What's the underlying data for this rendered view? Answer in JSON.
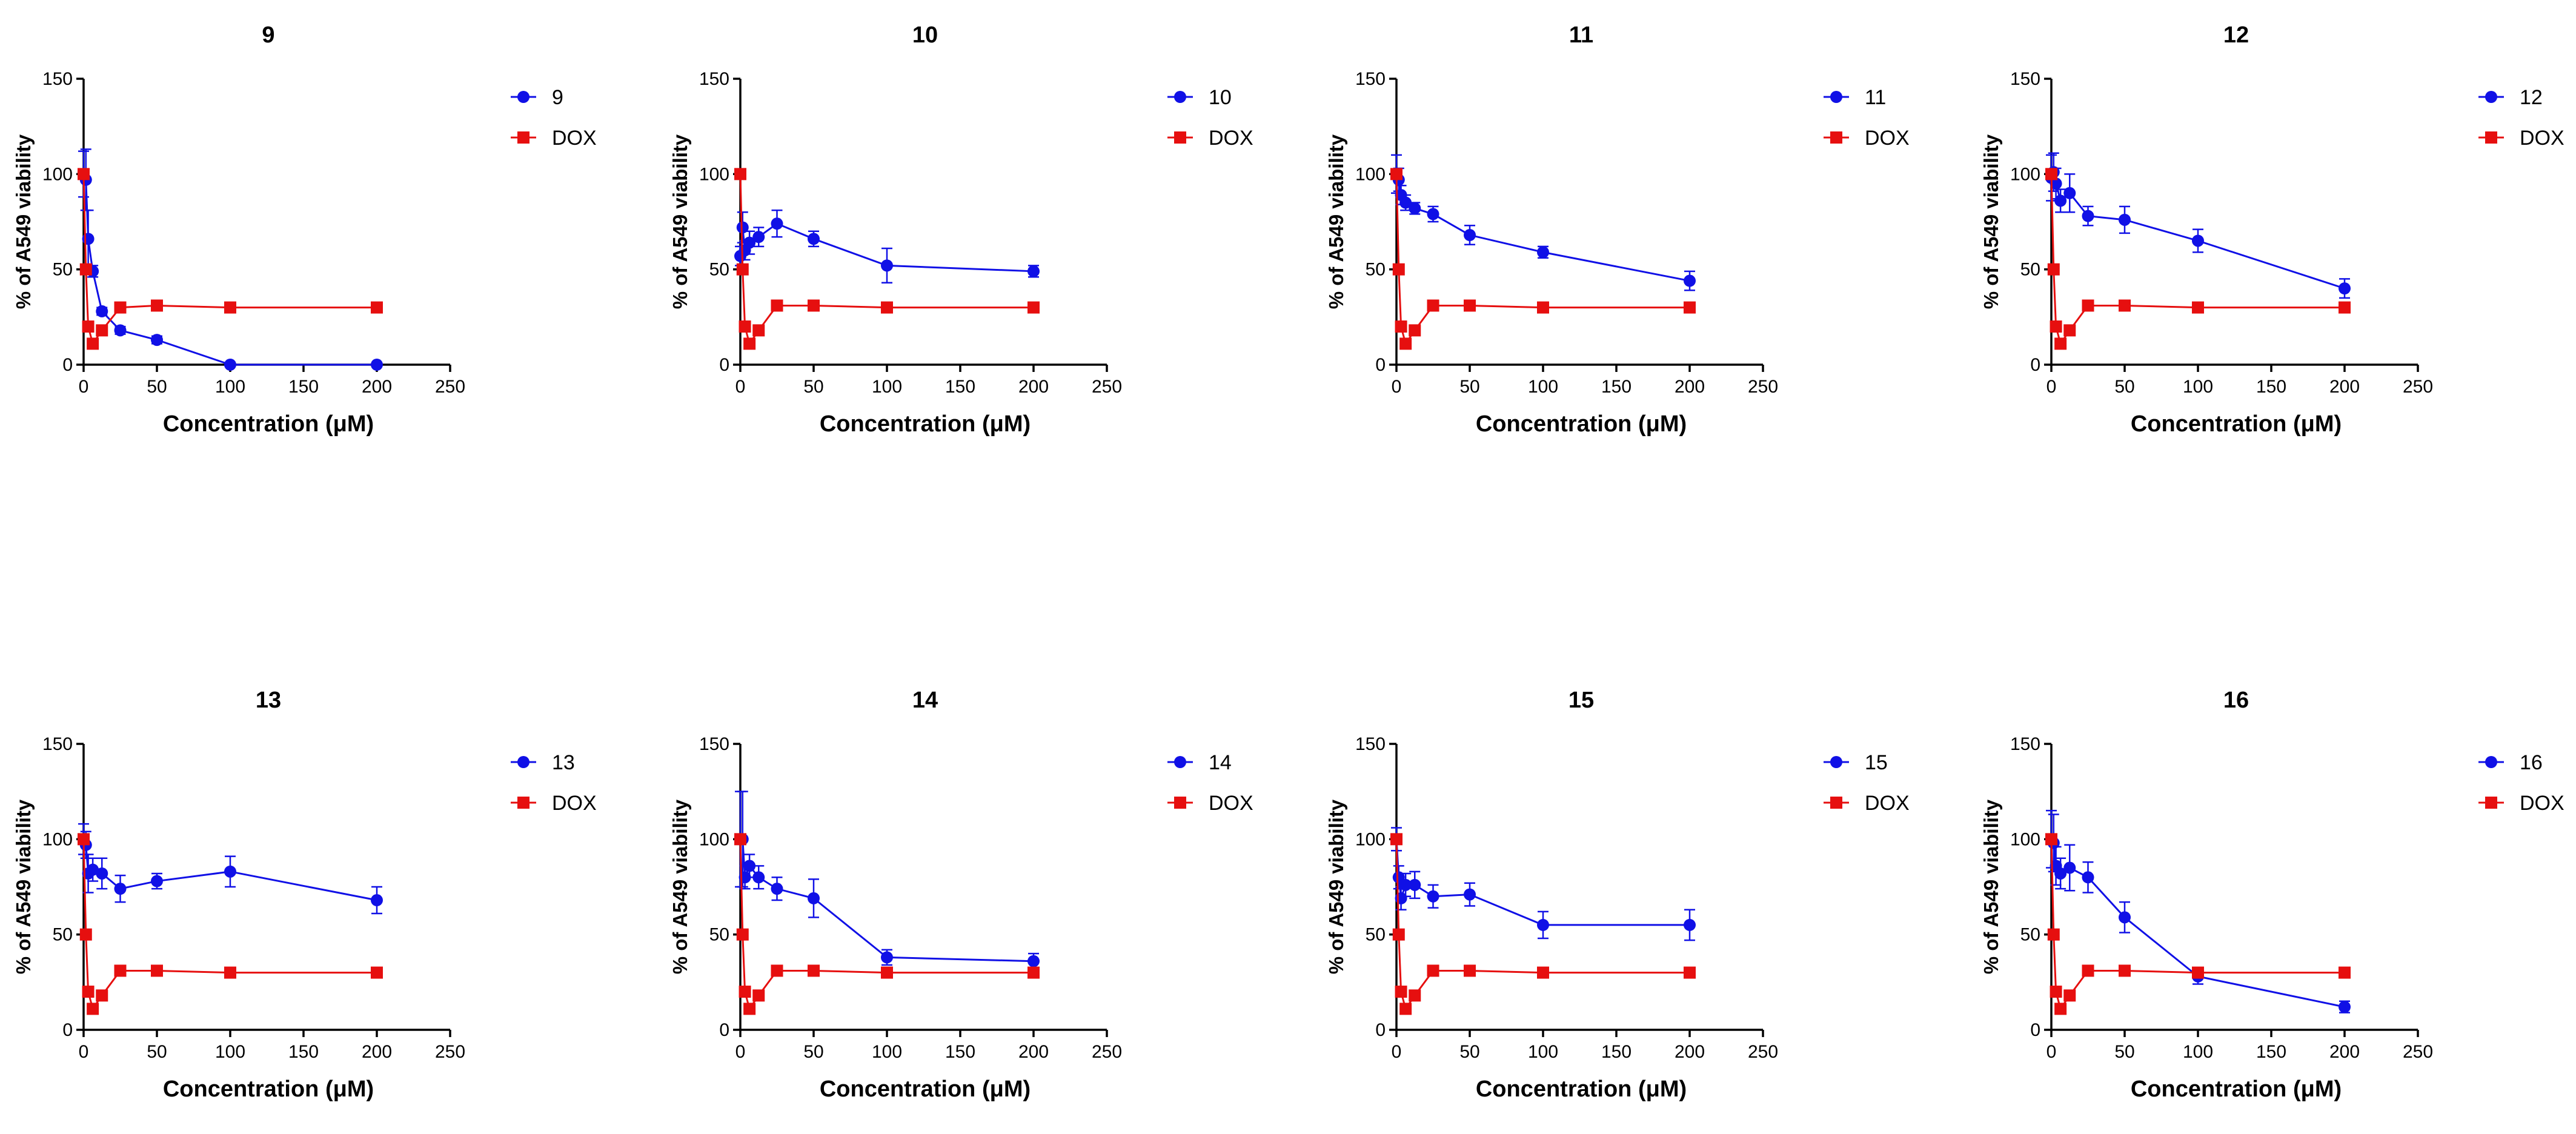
{
  "colors": {
    "compound": "#1010e6",
    "dox": "#e60f0f"
  },
  "chart_data": [
    {
      "type": "line",
      "title": "9",
      "xlabel": "Concentration (μM)",
      "ylabel": "% of A549 viability",
      "xlim": [
        0,
        250
      ],
      "ylim": [
        0,
        150
      ],
      "xticks": [
        0,
        50,
        100,
        150,
        200,
        250
      ],
      "yticks": [
        0,
        50,
        100,
        150
      ],
      "grid": false,
      "legend": "right",
      "series": [
        {
          "name": "9",
          "marker": "circle",
          "color": "#1010e6",
          "x": [
            0,
            1.56,
            3.13,
            6.25,
            12.5,
            25,
            50,
            100,
            200
          ],
          "y": [
            100,
            97,
            66,
            49,
            28,
            18,
            13,
            0,
            0
          ],
          "err": [
            12,
            16,
            15,
            3,
            2,
            2,
            2,
            1,
            1
          ]
        },
        {
          "name": "DOX",
          "marker": "square",
          "color": "#e60f0f",
          "x": [
            0,
            1.56,
            3.13,
            6.25,
            12.5,
            25,
            50,
            100,
            200
          ],
          "y": [
            100,
            50,
            20,
            11,
            18,
            30,
            31,
            30,
            30
          ],
          "err": [
            0,
            0,
            0,
            0,
            0,
            0,
            0,
            0,
            0
          ]
        }
      ]
    },
    {
      "type": "line",
      "title": "10",
      "xlabel": "Concentration (μM)",
      "ylabel": "% of A549 viability",
      "xlim": [
        0,
        250
      ],
      "ylim": [
        0,
        150
      ],
      "xticks": [
        0,
        50,
        100,
        150,
        200,
        250
      ],
      "yticks": [
        0,
        50,
        100,
        150
      ],
      "grid": false,
      "legend": "right",
      "series": [
        {
          "name": "10",
          "marker": "circle",
          "color": "#1010e6",
          "x": [
            0,
            1.56,
            3.13,
            6.25,
            12.5,
            25,
            50,
            100,
            200
          ],
          "y": [
            57,
            72,
            60,
            64,
            67,
            74,
            66,
            52,
            49
          ],
          "err": [
            5,
            8,
            5,
            6,
            5,
            7,
            4,
            9,
            3
          ]
        },
        {
          "name": "DOX",
          "marker": "square",
          "color": "#e60f0f",
          "x": [
            0,
            1.56,
            3.13,
            6.25,
            12.5,
            25,
            50,
            100,
            200
          ],
          "y": [
            100,
            50,
            20,
            11,
            18,
            31,
            31,
            30,
            30
          ],
          "err": [
            0,
            0,
            0,
            0,
            0,
            0,
            0,
            0,
            0
          ]
        }
      ]
    },
    {
      "type": "line",
      "title": "11",
      "xlabel": "Concentration (μM)",
      "ylabel": "% of A549 viability",
      "xlim": [
        0,
        250
      ],
      "ylim": [
        0,
        150
      ],
      "xticks": [
        0,
        50,
        100,
        150,
        200,
        250
      ],
      "yticks": [
        0,
        50,
        100,
        150
      ],
      "grid": false,
      "legend": "right",
      "series": [
        {
          "name": "11",
          "marker": "circle",
          "color": "#1010e6",
          "x": [
            0,
            1.56,
            3.13,
            6.25,
            12.5,
            25,
            50,
            100,
            200
          ],
          "y": [
            100,
            97,
            89,
            85,
            82,
            79,
            68,
            59,
            44
          ],
          "err": [
            10,
            6,
            5,
            4,
            3,
            4,
            5,
            3,
            5
          ]
        },
        {
          "name": "DOX",
          "marker": "square",
          "color": "#e60f0f",
          "x": [
            0,
            1.56,
            3.13,
            6.25,
            12.5,
            25,
            50,
            100,
            200
          ],
          "y": [
            100,
            50,
            20,
            11,
            18,
            31,
            31,
            30,
            30
          ],
          "err": [
            0,
            0,
            0,
            0,
            0,
            0,
            0,
            0,
            0
          ]
        }
      ]
    },
    {
      "type": "line",
      "title": "12",
      "xlabel": "Concentration (μM)",
      "ylabel": "% of A549 viability",
      "xlim": [
        0,
        250
      ],
      "ylim": [
        0,
        150
      ],
      "xticks": [
        0,
        50,
        100,
        150,
        200,
        250
      ],
      "yticks": [
        0,
        50,
        100,
        150
      ],
      "grid": false,
      "legend": "right",
      "series": [
        {
          "name": "12",
          "marker": "circle",
          "color": "#1010e6",
          "x": [
            0,
            1.56,
            3.13,
            6.25,
            12.5,
            25,
            50,
            100,
            200
          ],
          "y": [
            98,
            101,
            95,
            86,
            90,
            78,
            76,
            65,
            40
          ],
          "err": [
            12,
            10,
            8,
            6,
            10,
            5,
            7,
            6,
            5
          ]
        },
        {
          "name": "DOX",
          "marker": "square",
          "color": "#e60f0f",
          "x": [
            0,
            1.56,
            3.13,
            6.25,
            12.5,
            25,
            50,
            100,
            200
          ],
          "y": [
            100,
            50,
            20,
            11,
            18,
            31,
            31,
            30,
            30
          ],
          "err": [
            0,
            0,
            0,
            0,
            0,
            0,
            0,
            0,
            0
          ]
        }
      ]
    },
    {
      "type": "line",
      "title": "13",
      "xlabel": "Concentration (μM)",
      "ylabel": "% of A549 viability",
      "xlim": [
        0,
        250
      ],
      "ylim": [
        0,
        150
      ],
      "xticks": [
        0,
        50,
        100,
        150,
        200,
        250
      ],
      "yticks": [
        0,
        50,
        100,
        150
      ],
      "grid": false,
      "legend": "right",
      "series": [
        {
          "name": "13",
          "marker": "circle",
          "color": "#1010e6",
          "x": [
            0,
            1.56,
            3.13,
            6.25,
            12.5,
            25,
            50,
            100,
            200
          ],
          "y": [
            100,
            97,
            82,
            84,
            82,
            74,
            78,
            83,
            68
          ],
          "err": [
            8,
            7,
            10,
            6,
            8,
            7,
            4,
            8,
            7
          ]
        },
        {
          "name": "DOX",
          "marker": "square",
          "color": "#e60f0f",
          "x": [
            0,
            1.56,
            3.13,
            6.25,
            12.5,
            25,
            50,
            100,
            200
          ],
          "y": [
            100,
            50,
            20,
            11,
            18,
            31,
            31,
            30,
            30
          ],
          "err": [
            0,
            0,
            0,
            0,
            0,
            0,
            0,
            0,
            0
          ]
        }
      ]
    },
    {
      "type": "line",
      "title": "14",
      "xlabel": "Concentration (μM)",
      "ylabel": "% of A549 viability",
      "xlim": [
        0,
        250
      ],
      "ylim": [
        0,
        150
      ],
      "xticks": [
        0,
        50,
        100,
        150,
        200,
        250
      ],
      "yticks": [
        0,
        50,
        100,
        150
      ],
      "grid": false,
      "legend": "right",
      "series": [
        {
          "name": "14",
          "marker": "circle",
          "color": "#1010e6",
          "x": [
            0,
            1.56,
            3.13,
            6.25,
            12.5,
            25,
            50,
            100,
            200
          ],
          "y": [
            100,
            100,
            80,
            86,
            80,
            74,
            69,
            38,
            36
          ],
          "err": [
            25,
            25,
            6,
            6,
            6,
            6,
            10,
            4,
            4
          ]
        },
        {
          "name": "DOX",
          "marker": "square",
          "color": "#e60f0f",
          "x": [
            0,
            1.56,
            3.13,
            6.25,
            12.5,
            25,
            50,
            100,
            200
          ],
          "y": [
            100,
            50,
            20,
            11,
            18,
            31,
            31,
            30,
            30
          ],
          "err": [
            0,
            0,
            0,
            0,
            0,
            0,
            0,
            0,
            0
          ]
        }
      ]
    },
    {
      "type": "line",
      "title": "15",
      "xlabel": "Concentration (μM)",
      "ylabel": "% of A549 viability",
      "xlim": [
        0,
        250
      ],
      "ylim": [
        0,
        150
      ],
      "xticks": [
        0,
        50,
        100,
        150,
        200,
        250
      ],
      "yticks": [
        0,
        50,
        100,
        150
      ],
      "grid": false,
      "legend": "right",
      "series": [
        {
          "name": "15",
          "marker": "circle",
          "color": "#1010e6",
          "x": [
            0,
            1.56,
            3.13,
            6.25,
            12.5,
            25,
            50,
            100,
            200
          ],
          "y": [
            100,
            80,
            69,
            76,
            76,
            70,
            71,
            55,
            55
          ],
          "err": [
            6,
            6,
            6,
            6,
            7,
            6,
            6,
            7,
            8
          ]
        },
        {
          "name": "DOX",
          "marker": "square",
          "color": "#e60f0f",
          "x": [
            0,
            1.56,
            3.13,
            6.25,
            12.5,
            25,
            50,
            100,
            200
          ],
          "y": [
            100,
            50,
            20,
            11,
            18,
            31,
            31,
            30,
            30
          ],
          "err": [
            0,
            0,
            0,
            0,
            0,
            0,
            0,
            0,
            0
          ]
        }
      ]
    },
    {
      "type": "line",
      "title": "16",
      "xlabel": "Concentration (μM)",
      "ylabel": "% of A549 viability",
      "xlim": [
        0,
        250
      ],
      "ylim": [
        0,
        150
      ],
      "xticks": [
        0,
        50,
        100,
        150,
        200,
        250
      ],
      "yticks": [
        0,
        50,
        100,
        150
      ],
      "grid": false,
      "legend": "right",
      "series": [
        {
          "name": "16",
          "marker": "circle",
          "color": "#1010e6",
          "x": [
            0,
            1.56,
            3.13,
            6.25,
            12.5,
            25,
            50,
            100,
            200
          ],
          "y": [
            100,
            98,
            86,
            82,
            85,
            80,
            59,
            28,
            12
          ],
          "err": [
            15,
            15,
            10,
            8,
            12,
            8,
            8,
            4,
            3
          ]
        },
        {
          "name": "DOX",
          "marker": "square",
          "color": "#e60f0f",
          "x": [
            0,
            1.56,
            3.13,
            6.25,
            12.5,
            25,
            50,
            100,
            200
          ],
          "y": [
            100,
            50,
            20,
            11,
            18,
            31,
            31,
            30,
            30
          ],
          "err": [
            0,
            0,
            0,
            0,
            0,
            0,
            0,
            0,
            0
          ]
        }
      ]
    }
  ]
}
